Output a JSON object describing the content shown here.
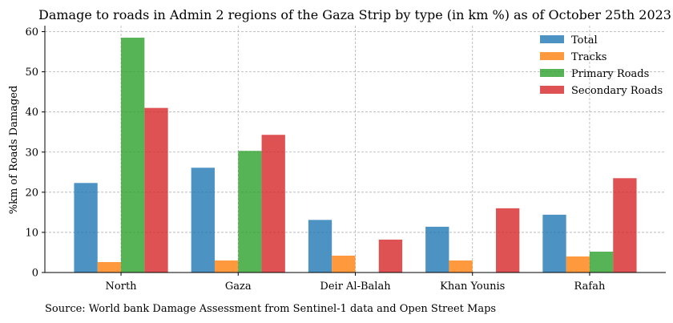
{
  "chart_data": {
    "type": "bar",
    "title": "Damage to roads in Admin 2 regions of the Gaza Strip by type (in km %) as of October 25th 2023",
    "xlabel": "",
    "ylabel": "%km of Roads Damaged",
    "ylim": [
      0,
      61.5
    ],
    "yticks": [
      0,
      10,
      20,
      30,
      40,
      50,
      60
    ],
    "grid": true,
    "legend_position": "top-right",
    "categories": [
      "North",
      "Gaza",
      "Deir Al-Balah",
      "Khan Younis",
      "Rafah"
    ],
    "series": [
      {
        "name": "Total",
        "color": "#1f77b4",
        "values": [
          22.3,
          26.1,
          13.1,
          11.4,
          14.4
        ]
      },
      {
        "name": "Tracks",
        "color": "#ff7f0e",
        "values": [
          2.6,
          3.0,
          4.2,
          3.0,
          4.0
        ]
      },
      {
        "name": "Primary Roads",
        "color": "#2ca02c",
        "values": [
          58.5,
          30.3,
          null,
          null,
          5.2
        ]
      },
      {
        "name": "Secondary Roads",
        "color": "#d62728",
        "values": [
          41.0,
          34.3,
          8.2,
          16.0,
          23.5
        ]
      }
    ]
  },
  "source_note": "Source: World bank Damage Assessment from Sentinel-1 data and Open Street Maps"
}
